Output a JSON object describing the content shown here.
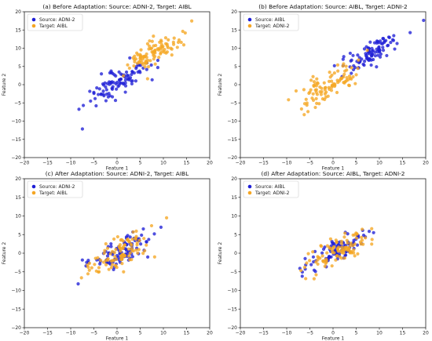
{
  "chart_data": [
    {
      "type": "scatter",
      "title": "(a) Before Adaptation: Source: ADNI-2, Target: AIBL",
      "xlabel": "Feature 1",
      "ylabel": "Feature 2",
      "xlim": [
        -20,
        20
      ],
      "ylim": [
        -20,
        20
      ],
      "xticks": [
        -20,
        -15,
        -10,
        -5,
        0,
        5,
        10,
        15,
        20
      ],
      "yticks": [
        -20,
        -15,
        -10,
        -5,
        0,
        5,
        10,
        15,
        20
      ],
      "legend": "top-left",
      "series": [
        {
          "name": "Source: ADNI-2",
          "color": "#1f1fd6",
          "cluster": {
            "n": 100,
            "cx": 0,
            "cy": 0,
            "slope": 0.9,
            "spreadAlong": 4.2,
            "spreadPerp": 1.5
          }
        },
        {
          "name": "Target: AIBL",
          "color": "#f5a623",
          "cluster": {
            "n": 100,
            "cx": 8,
            "cy": 9,
            "slope": 0.8,
            "spreadAlong": 3.8,
            "spreadPerp": 1.4
          }
        }
      ]
    },
    {
      "type": "scatter",
      "title": "(b) Before Adaptation: Source: AIBL, Target: ADNI-2",
      "xlabel": "Feature 1",
      "ylabel": "Feature 2",
      "xlim": [
        -20,
        20
      ],
      "ylim": [
        -20,
        20
      ],
      "xticks": [
        -20,
        -15,
        -10,
        -5,
        0,
        5,
        10,
        15,
        20
      ],
      "yticks": [
        -20,
        -15,
        -10,
        -5,
        0,
        5,
        10,
        15,
        20
      ],
      "legend": "top-left",
      "series": [
        {
          "name": "Source: AIBL",
          "color": "#1f1fd6",
          "cluster": {
            "n": 100,
            "cx": 9,
            "cy": 9,
            "slope": 0.9,
            "spreadAlong": 4.0,
            "spreadPerp": 1.4
          }
        },
        {
          "name": "Target: ADNI-2",
          "color": "#f5a623",
          "cluster": {
            "n": 100,
            "cx": -1,
            "cy": 0,
            "slope": 0.8,
            "spreadAlong": 4.2,
            "spreadPerp": 1.5
          }
        }
      ]
    },
    {
      "type": "scatter",
      "title": "(c) After Adaptation: Source: ADNI-2, Target: AIBL",
      "xlabel": "Feature 1",
      "ylabel": "Feature 2",
      "xlim": [
        -20,
        20
      ],
      "ylim": [
        -20,
        20
      ],
      "xticks": [
        -20,
        -15,
        -10,
        -5,
        0,
        5,
        10,
        15,
        20
      ],
      "yticks": [
        -20,
        -15,
        -10,
        -5,
        0,
        5,
        10,
        15,
        20
      ],
      "legend": "top-left",
      "series": [
        {
          "name": "Source: ADNI-2",
          "color": "#1f1fd6",
          "cluster": {
            "n": 100,
            "cx": 1,
            "cy": 0.5,
            "slope": 0.75,
            "spreadAlong": 4.0,
            "spreadPerp": 1.5
          }
        },
        {
          "name": "Target: AIBL",
          "color": "#f5a623",
          "cluster": {
            "n": 100,
            "cx": 0.5,
            "cy": 0,
            "slope": 0.75,
            "spreadAlong": 4.2,
            "spreadPerp": 1.6
          }
        }
      ]
    },
    {
      "type": "scatter",
      "title": "(d) After Adaptation: Source: AIBL, Target: ADNI-2",
      "xlabel": "Feature 1",
      "ylabel": "Feature 2",
      "xlim": [
        -20,
        20
      ],
      "ylim": [
        -20,
        20
      ],
      "xticks": [
        -20,
        -15,
        -10,
        -5,
        0,
        5,
        10,
        15,
        20
      ],
      "yticks": [
        -20,
        -15,
        -10,
        -5,
        0,
        5,
        10,
        15,
        20
      ],
      "legend": "top-left",
      "series": [
        {
          "name": "Source: AIBL",
          "color": "#1f1fd6",
          "cluster": {
            "n": 100,
            "cx": 0.5,
            "cy": 0.5,
            "slope": 0.75,
            "spreadAlong": 4.0,
            "spreadPerp": 1.4
          }
        },
        {
          "name": "Target: ADNI-2",
          "color": "#f5a623",
          "cluster": {
            "n": 100,
            "cx": 1,
            "cy": 0.5,
            "slope": 0.75,
            "spreadAlong": 4.0,
            "spreadPerp": 1.5
          }
        }
      ]
    }
  ]
}
